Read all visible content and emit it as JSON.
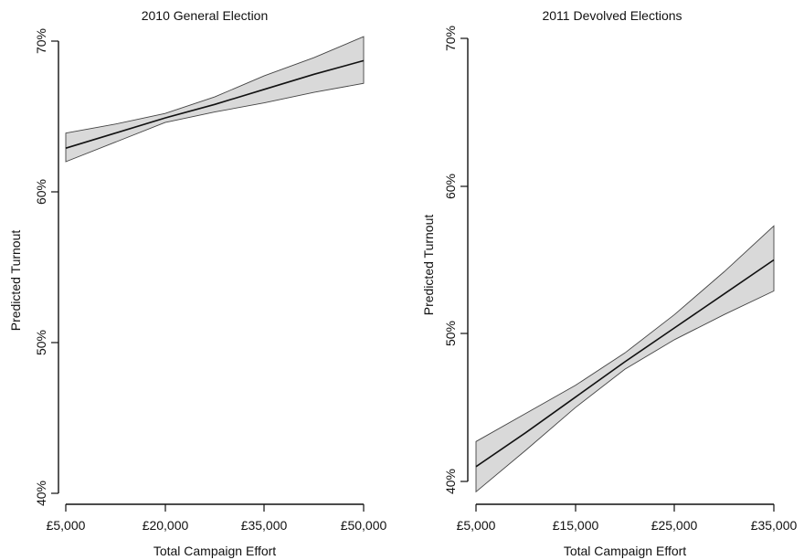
{
  "chart_data": [
    {
      "type": "line",
      "title": "2010 General Election",
      "xlabel": "Total Campaign Effort",
      "ylabel": "Predicted Turnout",
      "xlim": [
        5000,
        50000
      ],
      "ylim": [
        40,
        70
      ],
      "x_ticks": [
        5000,
        20000,
        35000,
        50000
      ],
      "x_tick_labels": [
        "£5,000",
        "£20,000",
        "£35,000",
        "£50,000"
      ],
      "y_ticks": [
        40,
        50,
        60,
        70
      ],
      "y_tick_labels": [
        "40%",
        "50%",
        "60%",
        "70%"
      ],
      "series": [
        {
          "x": [
            5000,
            12500,
            20000,
            27500,
            35000,
            42500,
            50000
          ],
          "y": [
            62.9,
            63.9,
            64.9,
            65.8,
            66.8,
            67.8,
            68.7
          ],
          "lower": [
            62.0,
            63.3,
            64.6,
            65.3,
            65.9,
            66.6,
            67.2
          ],
          "upper": [
            63.9,
            64.5,
            65.2,
            66.3,
            67.7,
            68.9,
            70.3
          ]
        }
      ],
      "grid": false
    },
    {
      "type": "line",
      "title": "2011 Devolved Elections",
      "xlabel": "Total Campaign Effort",
      "ylabel": "Predicted Turnout",
      "xlim": [
        5000,
        35000
      ],
      "ylim": [
        40,
        70
      ],
      "x_ticks": [
        5000,
        15000,
        25000,
        35000
      ],
      "x_tick_labels": [
        "£5,000",
        "£15,000",
        "£25,000",
        "£35,000"
      ],
      "y_ticks": [
        40,
        50,
        60,
        70
      ],
      "y_tick_labels": [
        "40%",
        "50%",
        "60%",
        "70%"
      ],
      "series": [
        {
          "x": [
            5000,
            10000,
            15000,
            20000,
            25000,
            30000,
            35000
          ],
          "y": [
            41.0,
            43.3,
            45.7,
            48.1,
            50.4,
            52.7,
            55.0
          ],
          "lower": [
            39.3,
            42.1,
            45.0,
            47.6,
            49.6,
            51.3,
            52.9
          ],
          "upper": [
            42.7,
            44.6,
            46.5,
            48.7,
            51.3,
            54.2,
            57.3
          ]
        }
      ],
      "grid": false
    }
  ]
}
